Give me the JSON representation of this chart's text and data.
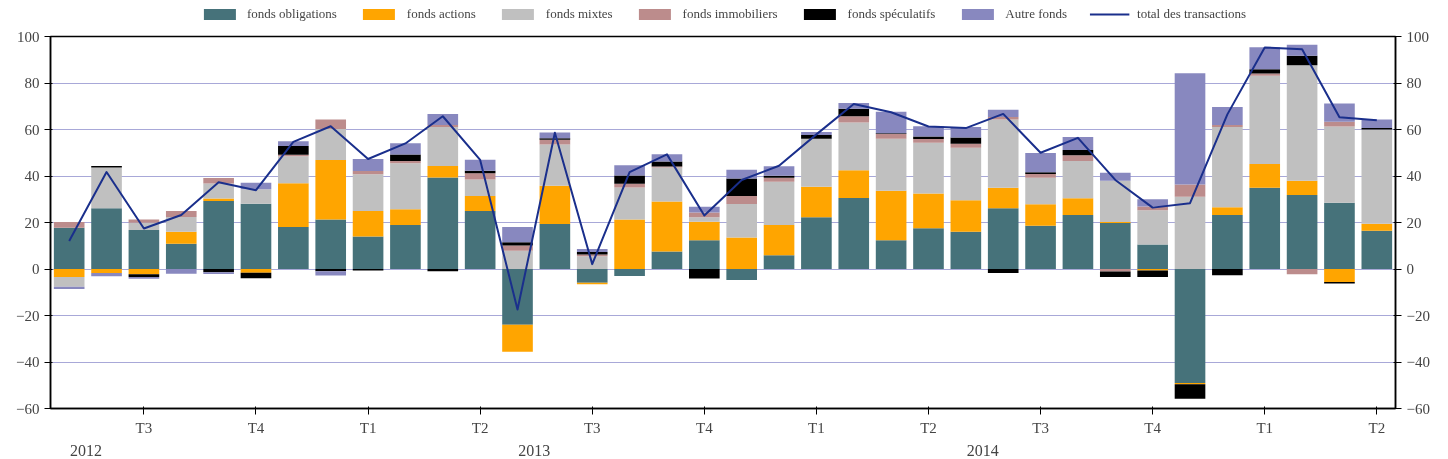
{
  "chart_data": {
    "type": "bar",
    "stacked": true,
    "categories": [
      null,
      null,
      "T3",
      null,
      null,
      "T4",
      null,
      null,
      "T1",
      null,
      null,
      "T2",
      null,
      null,
      "T3",
      null,
      null,
      "T4",
      null,
      null,
      "T1",
      null,
      null,
      "T2",
      null,
      null,
      "T3",
      null,
      null,
      "T4",
      null,
      null,
      "T1",
      null,
      null,
      "T2"
    ],
    "annotations": [
      "2012",
      "2013",
      "2014"
    ],
    "series": [
      {
        "name": "fonds obligations",
        "color": "#46727a",
        "values": [
          17.7,
          26.1,
          16.8,
          10.9,
          29.2,
          28.1,
          18.1,
          21.3,
          14.0,
          18.9,
          39.4,
          24.9,
          -24.0,
          19.4,
          -5.9,
          -3.0,
          7.5,
          12.4,
          -4.7,
          5.9,
          22.3,
          30.5,
          12.4,
          17.5,
          16.0,
          26.1,
          18.6,
          23.2,
          19.8,
          10.5,
          -49.0,
          23.2,
          34.9,
          31.8,
          28.5,
          16.5
        ]
      },
      {
        "name": "fonds actions",
        "color": "#ffa500",
        "values": [
          -3.4,
          -1.7,
          -2.3,
          5.1,
          1.1,
          -1.6,
          18.8,
          25.6,
          10.9,
          6.8,
          4.9,
          6.5,
          -11.6,
          16.4,
          -0.7,
          21.3,
          21.5,
          7.9,
          13.6,
          13.0,
          13.1,
          12.0,
          21.3,
          15.0,
          13.6,
          8.8,
          9.3,
          7.2,
          0.4,
          -0.6,
          -0.6,
          3.4,
          10.3,
          6.2,
          -5.6,
          3.0
        ]
      },
      {
        "name": "fonds mixtes",
        "color": "#c0c0c0",
        "values": [
          -4.2,
          17.6,
          3.1,
          6.4,
          6.5,
          6.2,
          11.6,
          13.3,
          15.8,
          19.8,
          16.8,
          7.1,
          7.8,
          17.7,
          5.5,
          13.8,
          14.7,
          2.0,
          14.4,
          18.6,
          20.6,
          20.5,
          22.3,
          21.8,
          22.5,
          29.4,
          11.3,
          16.1,
          17.8,
          14.8,
          31.1,
          34.5,
          37.9,
          49.6,
          32.8,
          40.5
        ]
      },
      {
        "name": "fonds immobiliers",
        "color": "#bc8c8c",
        "values": [
          2.5,
          null,
          1.4,
          2.5,
          2.3,
          null,
          0.6,
          4.1,
          1.4,
          1.0,
          0.8,
          2.7,
          2.3,
          2.1,
          0.7,
          1.6,
          0.4,
          2.0,
          3.4,
          1.8,
          null,
          2.7,
          2.1,
          1.6,
          1.8,
          1.1,
          1.7,
          2.4,
          -1.1,
          1.6,
          5.2,
          0.8,
          1.0,
          -2.3,
          2.0,
          null
        ]
      },
      {
        "name": "fonds spéculatifs",
        "color": "#000000",
        "values": [
          null,
          0.6,
          -1.1,
          null,
          -1.4,
          -2.4,
          3.8,
          -1.0,
          -0.6,
          2.8,
          -1.0,
          1.1,
          1.4,
          0.6,
          1.1,
          3.5,
          2.1,
          -4.1,
          7.5,
          0.8,
          1.6,
          3.2,
          0.3,
          1.1,
          2.7,
          -1.7,
          0.7,
          2.3,
          -2.3,
          -2.8,
          -6.2,
          -2.7,
          1.8,
          4.1,
          -0.6,
          0.6
        ]
      },
      {
        "name": "Autre fonds",
        "color": "#8888bf",
        "values": [
          -1.0,
          -1.4,
          -0.8,
          -2.0,
          -0.7,
          2.8,
          2.1,
          -1.8,
          5.2,
          4.8,
          4.8,
          4.7,
          6.6,
          2.5,
          1.3,
          4.4,
          3.2,
          2.5,
          3.8,
          4.1,
          1.3,
          2.5,
          9.2,
          4.4,
          4.5,
          3.1,
          8.3,
          5.6,
          3.4,
          3.1,
          47.9,
          7.8,
          9.5,
          4.8,
          7.9,
          3.7
        ]
      },
      {
        "name": "total des transactions",
        "type": "line",
        "color": "#1a2f8c",
        "values": [
          12.0,
          41.7,
          17.4,
          23.2,
          37.3,
          33.9,
          54.7,
          61.4,
          47.3,
          54.0,
          65.7,
          46.9,
          -17.4,
          58.6,
          2.1,
          41.7,
          49.3,
          23.0,
          38.3,
          44.4,
          57.9,
          71.0,
          67.4,
          61.3,
          60.6,
          66.7,
          50.0,
          56.4,
          38.3,
          26.4,
          28.3,
          66.5,
          95.3,
          94.5,
          65.3,
          64.0
        ]
      }
    ],
    "ylim": [
      -60,
      100
    ],
    "yticks": [
      -60,
      -40,
      -20,
      0,
      20,
      40,
      60,
      80,
      100
    ],
    "y2lim": [
      -60,
      100
    ],
    "y2ticks": [
      -60,
      -40,
      -20,
      0,
      20,
      40,
      60,
      80,
      100
    ],
    "grid": "y",
    "legend": "top"
  }
}
